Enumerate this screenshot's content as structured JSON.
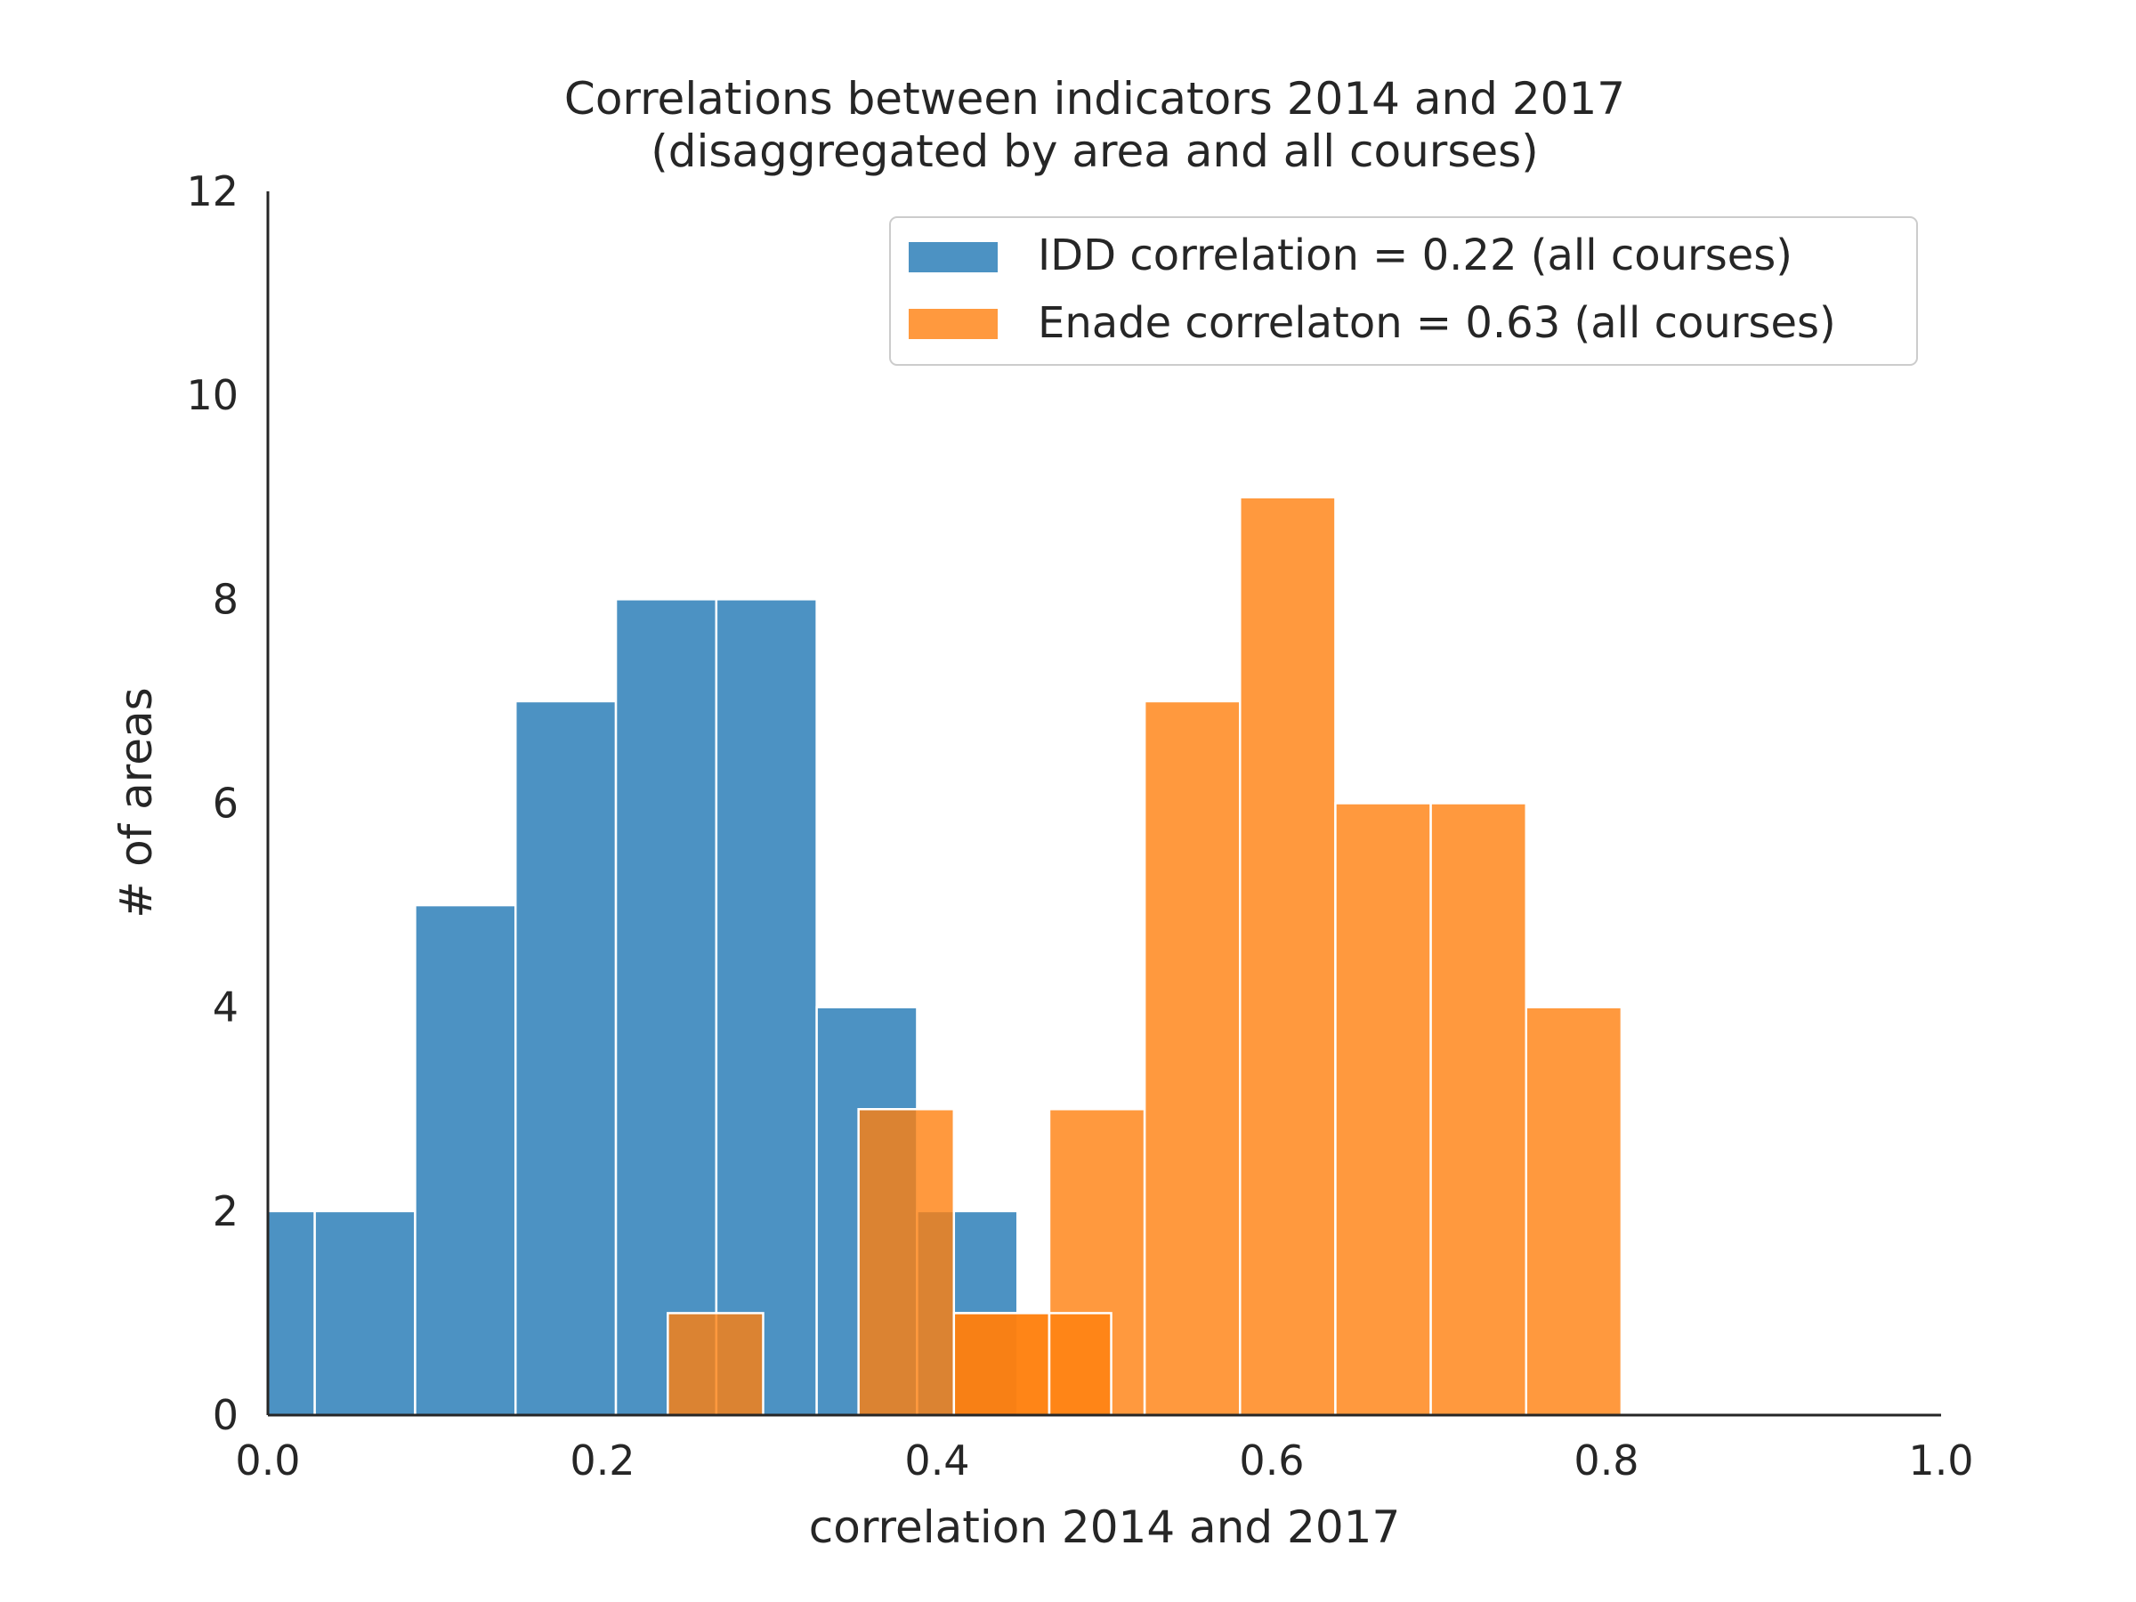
{
  "chart_data": {
    "type": "histogram",
    "title": [
      "Correlations between indicators 2014 and 2017",
      "(disaggregated by area and all courses)"
    ],
    "xlabel": "correlation 2014 and 2017",
    "ylabel": "# of areas",
    "xlim": [
      0.0,
      1.0
    ],
    "ylim": [
      0,
      12
    ],
    "xticks": [
      0.0,
      0.2,
      0.4,
      0.6,
      0.8,
      1.0
    ],
    "xtick_labels": [
      "0.0",
      "0.2",
      "0.4",
      "0.6",
      "0.8",
      "1.0"
    ],
    "yticks": [
      0,
      2,
      4,
      6,
      8,
      10,
      12
    ],
    "ytick_labels": [
      "0",
      "2",
      "4",
      "6",
      "8",
      "10",
      "12"
    ],
    "grid": false,
    "legend_position": "top-right",
    "series": [
      {
        "name": "IDD correlation = 0.22 (all courses)",
        "color": "#1f77b4",
        "opacity": 0.8,
        "bin_edges": [
          -0.03,
          0.028,
          0.088,
          0.148,
          0.208,
          0.268,
          0.328,
          0.388,
          0.448
        ],
        "counts": [
          2,
          2,
          5,
          7,
          8,
          8,
          4,
          2
        ]
      },
      {
        "name": "Enade correlaton = 0.63 (all courses)",
        "color": "#ff7f0e",
        "opacity": 0.8,
        "bin_edges": [
          0.239,
          0.296,
          0.353,
          0.41,
          0.467,
          0.524,
          0.581,
          0.638,
          0.695,
          0.752,
          0.809
        ],
        "counts": [
          1,
          0,
          3,
          1,
          3,
          7,
          9,
          6,
          6,
          4
        ]
      }
    ],
    "extra_bars": [
      {
        "series": 1,
        "x0": 0.41,
        "x1": 0.467,
        "count": 1
      },
      {
        "series": 1,
        "x0": 0.467,
        "x1": 0.504,
        "count": 1
      }
    ]
  }
}
